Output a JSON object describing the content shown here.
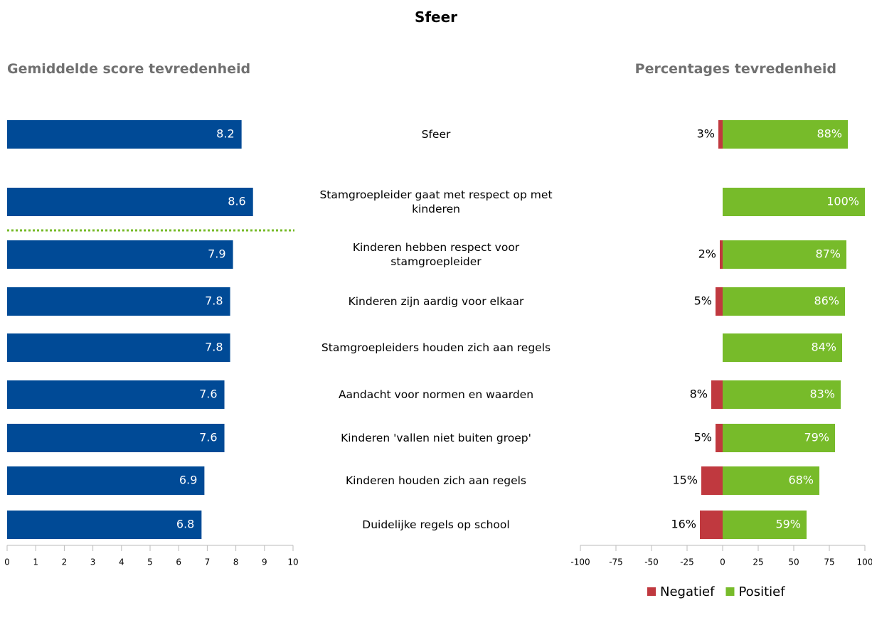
{
  "title": "Sfeer",
  "chart_data": [
    {
      "type": "bar",
      "title": "Gemiddelde score tevredenheid",
      "categories": [
        "Sfeer",
        "Stamgroepleider gaat met respect op met kinderen",
        "Kinderen hebben respect voor stamgroepleider",
        "Kinderen zijn aardig voor elkaar",
        "Stamgroepleiders houden zich aan regels",
        "Aandacht voor normen en waarden",
        "Kinderen 'vallen niet buiten groep'",
        "Kinderen houden zich aan regels",
        "Duidelijke regels op school"
      ],
      "values": [
        8.2,
        8.6,
        7.9,
        7.8,
        7.8,
        7.6,
        7.6,
        6.9,
        6.8
      ],
      "color": "#004a96",
      "xlim": [
        0,
        10
      ],
      "xticks": [
        0,
        1,
        2,
        3,
        4,
        5,
        6,
        7,
        8,
        9,
        10
      ]
    },
    {
      "type": "diverging_bar",
      "title": "Percentages tevredenheid",
      "series": [
        {
          "name": "Negatief",
          "color": "#c0393f",
          "values": [
            -3,
            null,
            -2,
            -5,
            null,
            -8,
            -5,
            -15,
            -16
          ],
          "value_labels": [
            "3%",
            null,
            "2%",
            "5%",
            null,
            "8%",
            "5%",
            "15%",
            "16%"
          ]
        },
        {
          "name": "Positief",
          "color": "#77bb2a",
          "values": [
            88,
            100,
            87,
            86,
            84,
            83,
            79,
            68,
            59
          ],
          "value_labels": [
            "88%",
            "100%",
            "87%",
            "86%",
            "84%",
            "83%",
            "79%",
            "68%",
            "59%"
          ]
        }
      ],
      "xlim": [
        -100,
        100
      ],
      "xticks": [
        -100,
        -75,
        -50,
        -25,
        0,
        25,
        50,
        75,
        100
      ],
      "legend": "bottom-right"
    }
  ]
}
